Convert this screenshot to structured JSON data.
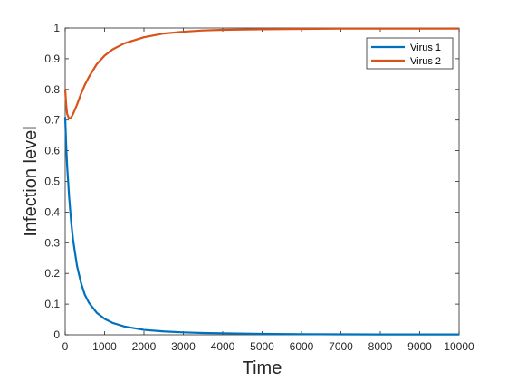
{
  "chart_data": {
    "type": "line",
    "xlabel": "Time",
    "ylabel": "Infection level",
    "xlim": [
      0,
      10000
    ],
    "ylim": [
      0,
      1
    ],
    "xticks": [
      0,
      1000,
      2000,
      3000,
      4000,
      5000,
      6000,
      7000,
      8000,
      9000,
      10000
    ],
    "yticks": [
      0,
      0.1,
      0.2,
      0.3,
      0.4,
      0.5,
      0.6,
      0.7,
      0.8,
      0.9,
      1
    ],
    "xtick_labels": [
      "0",
      "1000",
      "2000",
      "3000",
      "4000",
      "5000",
      "6000",
      "7000",
      "8000",
      "9000",
      "10000"
    ],
    "ytick_labels": [
      "0",
      "0.1",
      "0.2",
      "0.3",
      "0.4",
      "0.5",
      "0.6",
      "0.7",
      "0.8",
      "0.9",
      "1"
    ],
    "grid": false,
    "legend_position": "top-right",
    "series": [
      {
        "name": "Virus 1",
        "color": "#0072BD",
        "x": [
          0,
          25,
          50,
          100,
          150,
          200,
          300,
          400,
          500,
          600,
          800,
          1000,
          1200,
          1500,
          2000,
          2500,
          3000,
          3500,
          4000,
          5000,
          6000,
          7000,
          8000,
          9000,
          10000
        ],
        "y": [
          0.71,
          0.62,
          0.55,
          0.45,
          0.37,
          0.31,
          0.225,
          0.17,
          0.13,
          0.105,
          0.072,
          0.052,
          0.039,
          0.027,
          0.016,
          0.011,
          0.008,
          0.006,
          0.005,
          0.003,
          0.002,
          0.0015,
          0.001,
          0.001,
          0.001
        ]
      },
      {
        "name": "Virus 2",
        "color": "#D95319",
        "x": [
          0,
          25,
          50,
          100,
          150,
          200,
          300,
          400,
          500,
          600,
          800,
          1000,
          1200,
          1500,
          2000,
          2500,
          3000,
          3500,
          4000,
          5000,
          6000,
          7000,
          8000,
          9000,
          10000
        ],
        "y": [
          0.8,
          0.75,
          0.72,
          0.705,
          0.708,
          0.72,
          0.75,
          0.785,
          0.815,
          0.84,
          0.882,
          0.91,
          0.93,
          0.95,
          0.97,
          0.982,
          0.988,
          0.992,
          0.994,
          0.996,
          0.997,
          0.998,
          0.998,
          0.998,
          0.998
        ]
      }
    ]
  }
}
